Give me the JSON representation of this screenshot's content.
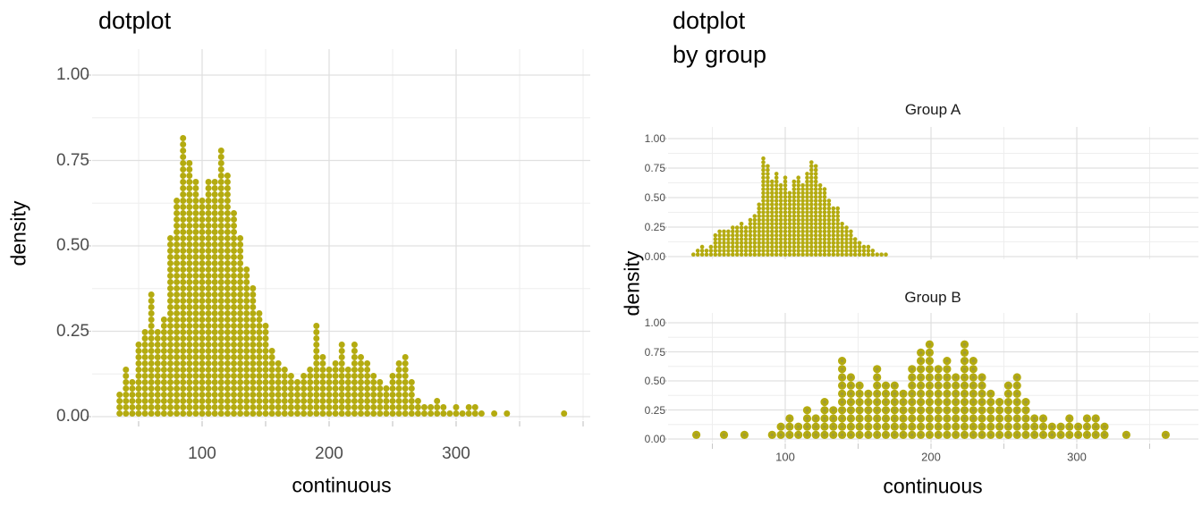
{
  "figure": {
    "background": "#ffffff"
  },
  "palette": {
    "dot": "#b4ab10",
    "dot_center": "#8f8c55",
    "grid_major": "#e0e0e0",
    "grid_minor": "#eeeeee",
    "axis_tick": "#c8c8c8",
    "tick_label": "#4d4d4d",
    "title": "#000000",
    "strip_label": "#1a1a1a"
  },
  "chart_data": [
    {
      "type": "dotplot",
      "title": "dotplot",
      "xlabel": "continuous",
      "ylabel": "density",
      "x_breaks": [
        100,
        200,
        300
      ],
      "x_minor_breaks": [
        50,
        150,
        250,
        350,
        400
      ],
      "x_tick_labels": [
        "100",
        "200",
        "300"
      ],
      "y_breaks": [
        1.0,
        0.75,
        0.5,
        0.25,
        0.0
      ],
      "y_tick_labels": [
        "1.00",
        "0.75",
        "0.50",
        "0.25",
        "0.00"
      ],
      "xlim": [
        15,
        405
      ],
      "ylim": [
        0,
        1.08
      ],
      "grid": true,
      "legend": "none",
      "dot_density_per_dot": 0.0183,
      "columns": [
        [
          35,
          4
        ],
        [
          40,
          8
        ],
        [
          45,
          6
        ],
        [
          50,
          12
        ],
        [
          55,
          14
        ],
        [
          60,
          20
        ],
        [
          65,
          14
        ],
        [
          70,
          16
        ],
        [
          75,
          29
        ],
        [
          80,
          35
        ],
        [
          85,
          45
        ],
        [
          90,
          41
        ],
        [
          95,
          38
        ],
        [
          100,
          35
        ],
        [
          105,
          38
        ],
        [
          110,
          38
        ],
        [
          115,
          43
        ],
        [
          120,
          39
        ],
        [
          125,
          33
        ],
        [
          130,
          29
        ],
        [
          135,
          24
        ],
        [
          140,
          21
        ],
        [
          145,
          17
        ],
        [
          150,
          15
        ],
        [
          155,
          11
        ],
        [
          160,
          9
        ],
        [
          165,
          8
        ],
        [
          170,
          7
        ],
        [
          175,
          6
        ],
        [
          180,
          7
        ],
        [
          185,
          8
        ],
        [
          190,
          15
        ],
        [
          195,
          10
        ],
        [
          200,
          8
        ],
        [
          205,
          9
        ],
        [
          210,
          12
        ],
        [
          215,
          8
        ],
        [
          220,
          12
        ],
        [
          225,
          10
        ],
        [
          230,
          9
        ],
        [
          235,
          7
        ],
        [
          240,
          6
        ],
        [
          245,
          5
        ],
        [
          250,
          7
        ],
        [
          255,
          9
        ],
        [
          260,
          10
        ],
        [
          265,
          6
        ],
        [
          270,
          3
        ],
        [
          275,
          2
        ],
        [
          280,
          2
        ],
        [
          285,
          3
        ],
        [
          290,
          2
        ],
        [
          295,
          1
        ],
        [
          300,
          2
        ],
        [
          305,
          1
        ],
        [
          310,
          2
        ],
        [
          315,
          2
        ],
        [
          320,
          1
        ],
        [
          330,
          1
        ],
        [
          340,
          1
        ],
        [
          385,
          1
        ]
      ]
    },
    {
      "type": "dotplot",
      "faceted_by": "group",
      "title_lines": [
        "dotplot",
        "by group"
      ],
      "xlabel": "continuous",
      "ylabel": "density",
      "x_breaks": [
        100,
        200,
        300
      ],
      "x_minor_breaks": [
        50,
        150,
        250,
        350
      ],
      "x_tick_labels": [
        "100",
        "200",
        "300"
      ],
      "y_breaks": [
        1.0,
        0.75,
        0.5,
        0.25,
        0.0
      ],
      "y_tick_labels": [
        "1.00",
        "0.75",
        "0.50",
        "0.25",
        "0.00"
      ],
      "xlim": [
        13,
        387
      ],
      "ylim": [
        0,
        1.08
      ],
      "grid": true,
      "legend": "none",
      "facets": [
        {
          "label": "Group A",
          "dot_density_per_dot": 0.0326,
          "columns": [
            [
              37,
              1
            ],
            [
              40,
              2
            ],
            [
              43,
              3
            ],
            [
              46,
              2
            ],
            [
              49,
              3
            ],
            [
              52,
              6
            ],
            [
              55,
              7
            ],
            [
              58,
              7
            ],
            [
              61,
              7
            ],
            [
              64,
              8
            ],
            [
              67,
              8
            ],
            [
              70,
              9
            ],
            [
              73,
              8
            ],
            [
              76,
              10
            ],
            [
              79,
              11
            ],
            [
              82,
              14
            ],
            [
              85,
              26
            ],
            [
              88,
              24
            ],
            [
              91,
              20
            ],
            [
              94,
              22
            ],
            [
              97,
              19
            ],
            [
              100,
              21
            ],
            [
              103,
              17
            ],
            [
              106,
              20
            ],
            [
              109,
              21
            ],
            [
              112,
              19
            ],
            [
              115,
              22
            ],
            [
              118,
              25
            ],
            [
              121,
              24
            ],
            [
              124,
              19
            ],
            [
              127,
              18
            ],
            [
              130,
              15
            ],
            [
              133,
              13
            ],
            [
              136,
              13
            ],
            [
              139,
              9
            ],
            [
              142,
              8
            ],
            [
              145,
              7
            ],
            [
              148,
              5
            ],
            [
              151,
              4
            ],
            [
              154,
              3
            ],
            [
              157,
              3
            ],
            [
              160,
              2
            ],
            [
              163,
              1
            ],
            [
              166,
              1
            ],
            [
              169,
              1
            ]
          ]
        },
        {
          "label": "Group B",
          "dot_density_per_dot": 0.0708,
          "columns": [
            [
              39,
              1
            ],
            [
              58,
              1
            ],
            [
              72,
              1
            ],
            [
              91,
              1
            ],
            [
              97,
              2
            ],
            [
              103,
              3
            ],
            [
              109,
              2
            ],
            [
              115,
              4
            ],
            [
              121,
              3
            ],
            [
              127,
              5
            ],
            [
              133,
              4
            ],
            [
              139,
              10
            ],
            [
              145,
              8
            ],
            [
              151,
              7
            ],
            [
              157,
              6
            ],
            [
              163,
              9
            ],
            [
              169,
              7
            ],
            [
              175,
              7
            ],
            [
              181,
              6
            ],
            [
              187,
              9
            ],
            [
              193,
              11
            ],
            [
              199,
              12
            ],
            [
              205,
              9
            ],
            [
              211,
              10
            ],
            [
              217,
              8
            ],
            [
              223,
              12
            ],
            [
              229,
              10
            ],
            [
              235,
              8
            ],
            [
              241,
              6
            ],
            [
              247,
              5
            ],
            [
              253,
              7
            ],
            [
              259,
              8
            ],
            [
              265,
              5
            ],
            [
              271,
              3
            ],
            [
              277,
              3
            ],
            [
              283,
              2
            ],
            [
              289,
              2
            ],
            [
              295,
              3
            ],
            [
              301,
              2
            ],
            [
              307,
              3
            ],
            [
              313,
              3
            ],
            [
              319,
              2
            ],
            [
              334,
              1
            ],
            [
              361,
              1
            ]
          ]
        }
      ]
    }
  ]
}
